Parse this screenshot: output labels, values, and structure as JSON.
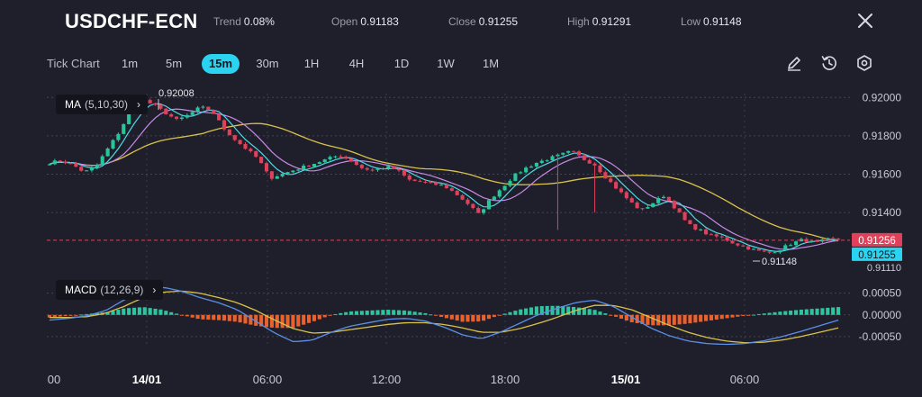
{
  "header": {
    "symbol": "USDCHF-ECN",
    "trend_label": "Trend",
    "trend_value": "0.08%",
    "open_label": "Open",
    "open_value": "0.91183",
    "close_label": "Close",
    "close_value": "0.91255",
    "high_label": "High",
    "high_value": "0.91291",
    "low_label": "Low",
    "low_value": "0.91148"
  },
  "timeframes": {
    "title": "Tick Chart",
    "items": [
      "1m",
      "5m",
      "15m",
      "30m",
      "1H",
      "4H",
      "1D",
      "1W",
      "1M"
    ],
    "active": "15m"
  },
  "tools": [
    "pencil-icon",
    "clock-reset-icon",
    "settings-hex-icon",
    "close-icon"
  ],
  "indicators": {
    "ma_name": "MA",
    "ma_params": "(5,10,30)",
    "macd_name": "MACD",
    "macd_params": "(12,26,9)"
  },
  "colors": {
    "background": "#1f1f2b",
    "up": "#26c69a",
    "down": "#e0405a",
    "ma5": "#4fd9e6",
    "ma10": "#c78ae6",
    "ma30": "#d9c24a",
    "dif": "#5b8fe8",
    "dea": "#d9c24a",
    "hist_up": "#2ec4a0",
    "hist_down": "#e8622f",
    "price_tag_bid": "#e0405a",
    "price_tag_ask": "#2ad4f0"
  },
  "chart_data": [
    {
      "type": "candlestick",
      "title": "USDCHF-ECN",
      "interval": "15m",
      "y_ticks": [
        "0.92000",
        "0.91800",
        "0.91600",
        "0.91400"
      ],
      "ylim": [
        0.9111,
        0.9202
      ],
      "y_bottom_label": "0.91110",
      "x_ticks": [
        "00",
        "14/01",
        "06:00",
        "12:00",
        "18:00",
        "15/01",
        "06:00"
      ],
      "annotations": {
        "max": "0.92008",
        "min": "0.91148"
      },
      "current_price_bid": "0.91256",
      "current_price_ask": "0.91255",
      "grid": true,
      "close_path": [
        0.9166,
        0.9167,
        0.9165,
        0.9161,
        0.9164,
        0.9173,
        0.9182,
        0.9193,
        0.9199,
        0.9196,
        0.9192,
        0.9188,
        0.9191,
        0.9195,
        0.9193,
        0.9184,
        0.9178,
        0.9173,
        0.9168,
        0.9158,
        0.916,
        0.9162,
        0.9164,
        0.9166,
        0.9168,
        0.917,
        0.9167,
        0.9163,
        0.9162,
        0.9164,
        0.9162,
        0.9157,
        0.9156,
        0.9155,
        0.9154,
        0.915,
        0.9145,
        0.9139,
        0.9147,
        0.9153,
        0.9159,
        0.9163,
        0.9166,
        0.9168,
        0.917,
        0.9172,
        0.9168,
        0.9165,
        0.9158,
        0.9152,
        0.9146,
        0.9141,
        0.9145,
        0.9149,
        0.9142,
        0.9134,
        0.9131,
        0.9128,
        0.9127,
        0.9124,
        0.9122,
        0.912,
        0.9119,
        0.9121,
        0.9124,
        0.9126,
        0.9124,
        0.9126,
        0.9126
      ]
    },
    {
      "type": "line",
      "title": "MACD (12,26,9)",
      "y_ticks": [
        "0.00050",
        "0.00000",
        "-0.00050"
      ],
      "ylim": [
        -0.00075,
        0.0007
      ],
      "series_dif_path": [
        -0.00012,
        -8e-05,
        -2e-05,
        0.0001,
        0.00035,
        0.00058,
        0.00064,
        0.00055,
        0.0004,
        0.00028,
        0.00012,
        -0.00015,
        -0.00042,
        -0.00062,
        -0.00058,
        -0.0004,
        -0.00026,
        -0.00018,
        -0.0001,
        -8e-05,
        -0.00014,
        -0.00028,
        -0.00046,
        -0.00055,
        -0.0004,
        -0.0002,
        0.0,
        0.00015,
        0.00028,
        0.00034,
        0.0002,
        -5e-05,
        -0.0003,
        -0.00048,
        -0.0006,
        -0.00066,
        -0.00068,
        -0.00066,
        -0.0006,
        -0.0005,
        -0.00038,
        -0.00025,
        -0.00012
      ],
      "series_dea_path": [
        -6e-05,
        -6e-05,
        -4e-05,
        4e-05,
        0.0002,
        0.0004,
        0.00052,
        0.00055,
        0.0005,
        0.0004,
        0.00028,
        0.0001,
        -0.00012,
        -0.00032,
        -0.00042,
        -0.0004,
        -0.00034,
        -0.00028,
        -0.00022,
        -0.00018,
        -0.00018,
        -0.00022,
        -0.0003,
        -0.0004,
        -0.0004,
        -0.00032,
        -0.0002,
        -6e-05,
        0.0001,
        0.00022,
        0.00022,
        0.00012,
        -6e-05,
        -0.00024,
        -0.0004,
        -0.00052,
        -0.0006,
        -0.00064,
        -0.00063,
        -0.00058,
        -0.0005,
        -0.0004,
        -0.0003
      ]
    }
  ]
}
